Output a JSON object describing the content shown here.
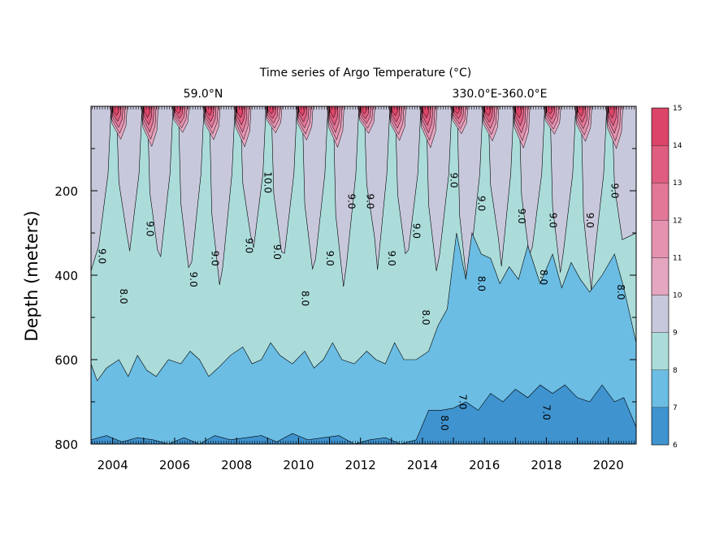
{
  "chart_data": {
    "type": "area",
    "title": "Time series of Argo Temperature (°C)",
    "subtitle_left": "59.0°N",
    "subtitle_right": "330.0°E-360.0°E",
    "xlabel": "",
    "ylabel": "Depth (meters)",
    "xlim": [
      2003.3,
      2020.9
    ],
    "ylim": [
      800,
      0
    ],
    "xticks": [
      "2004",
      "2006",
      "2008",
      "2010",
      "2012",
      "2014",
      "2016",
      "2018",
      "2020"
    ],
    "xtick_values": [
      2004,
      2006,
      2008,
      2010,
      2012,
      2014,
      2016,
      2018,
      2020
    ],
    "yticks": [
      "200",
      "400",
      "600",
      "800"
    ],
    "ytick_values": [
      200,
      400,
      600,
      800
    ],
    "colorbar": {
      "levels": [
        "6",
        "7",
        "8",
        "9",
        "10",
        "11",
        "12",
        "13",
        "14",
        "15"
      ],
      "colors": [
        "#3f93cf",
        "#6bbde4",
        "#abdcda",
        "#c8c8dc",
        "#e5a6c0",
        "#e592b0",
        "#e27798",
        "#df5d80",
        "#dc4468"
      ]
    },
    "contour_labels": [
      "8.0",
      "8.0",
      "8.0",
      "8.0",
      "8.0",
      "8.0",
      "8.0",
      "9.0",
      "9.0",
      "9.0",
      "9.0",
      "9.0",
      "9.0",
      "9.0",
      "9.0",
      "9.0",
      "9.0",
      "9.0",
      "9.0",
      "9.0",
      "9.0",
      "9.0",
      "9.0",
      "9.0",
      "10.0",
      "7.0",
      "7.0"
    ],
    "series": [
      {
        "label": "8",
        "x": [
          2003.3,
          2003.5,
          2003.8,
          2004.2,
          2004.5,
          2004.8,
          2005.1,
          2005.4,
          2005.8,
          2006.2,
          2006.5,
          2006.8,
          2007.1,
          2007.4,
          2007.8,
          2008.2,
          2008.5,
          2008.8,
          2009.1,
          2009.4,
          2009.8,
          2010.2,
          2010.5,
          2010.8,
          2011.1,
          2011.4,
          2011.8,
          2012.2,
          2012.5,
          2012.8,
          2013.1,
          2013.4,
          2013.8,
          2014.2,
          2014.5,
          2014.8,
          2015.1,
          2015.4,
          2015.6,
          2015.9,
          2016.2,
          2016.5,
          2016.8,
          2017.1,
          2017.4,
          2017.8,
          2018.2,
          2018.5,
          2018.8,
          2019.1,
          2019.4,
          2019.8,
          2020.2,
          2020.5,
          2020.9
        ],
        "y": [
          610,
          650,
          620,
          600,
          640,
          590,
          625,
          640,
          600,
          610,
          580,
          600,
          640,
          620,
          590,
          570,
          610,
          600,
          560,
          590,
          610,
          580,
          620,
          600,
          560,
          600,
          610,
          580,
          600,
          610,
          560,
          600,
          600,
          580,
          520,
          480,
          300,
          410,
          300,
          350,
          360,
          420,
          380,
          410,
          330,
          420,
          350,
          430,
          370,
          410,
          440,
          400,
          350,
          430,
          560
        ]
      },
      {
        "label": "7",
        "x": [
          2003.3,
          2003.8,
          2004.3,
          2004.8,
          2005.3,
          2005.8,
          2006.3,
          2006.8,
          2007.3,
          2007.8,
          2008.3,
          2008.8,
          2009.3,
          2009.8,
          2010.3,
          2010.8,
          2011.3,
          2011.8,
          2012.3,
          2012.8,
          2013.3,
          2013.8,
          2014.2,
          2014.6,
          2015.0,
          2015.4,
          2015.8,
          2016.2,
          2016.6,
          2017.0,
          2017.4,
          2017.8,
          2018.2,
          2018.6,
          2019.0,
          2019.4,
          2019.8,
          2020.2,
          2020.5,
          2020.9
        ],
        "y": [
          790,
          780,
          795,
          785,
          790,
          800,
          785,
          800,
          780,
          790,
          785,
          780,
          795,
          775,
          790,
          785,
          780,
          800,
          790,
          785,
          800,
          790,
          720,
          720,
          715,
          700,
          720,
          680,
          700,
          670,
          690,
          660,
          680,
          660,
          690,
          700,
          660,
          700,
          690,
          760
        ]
      }
    ]
  }
}
